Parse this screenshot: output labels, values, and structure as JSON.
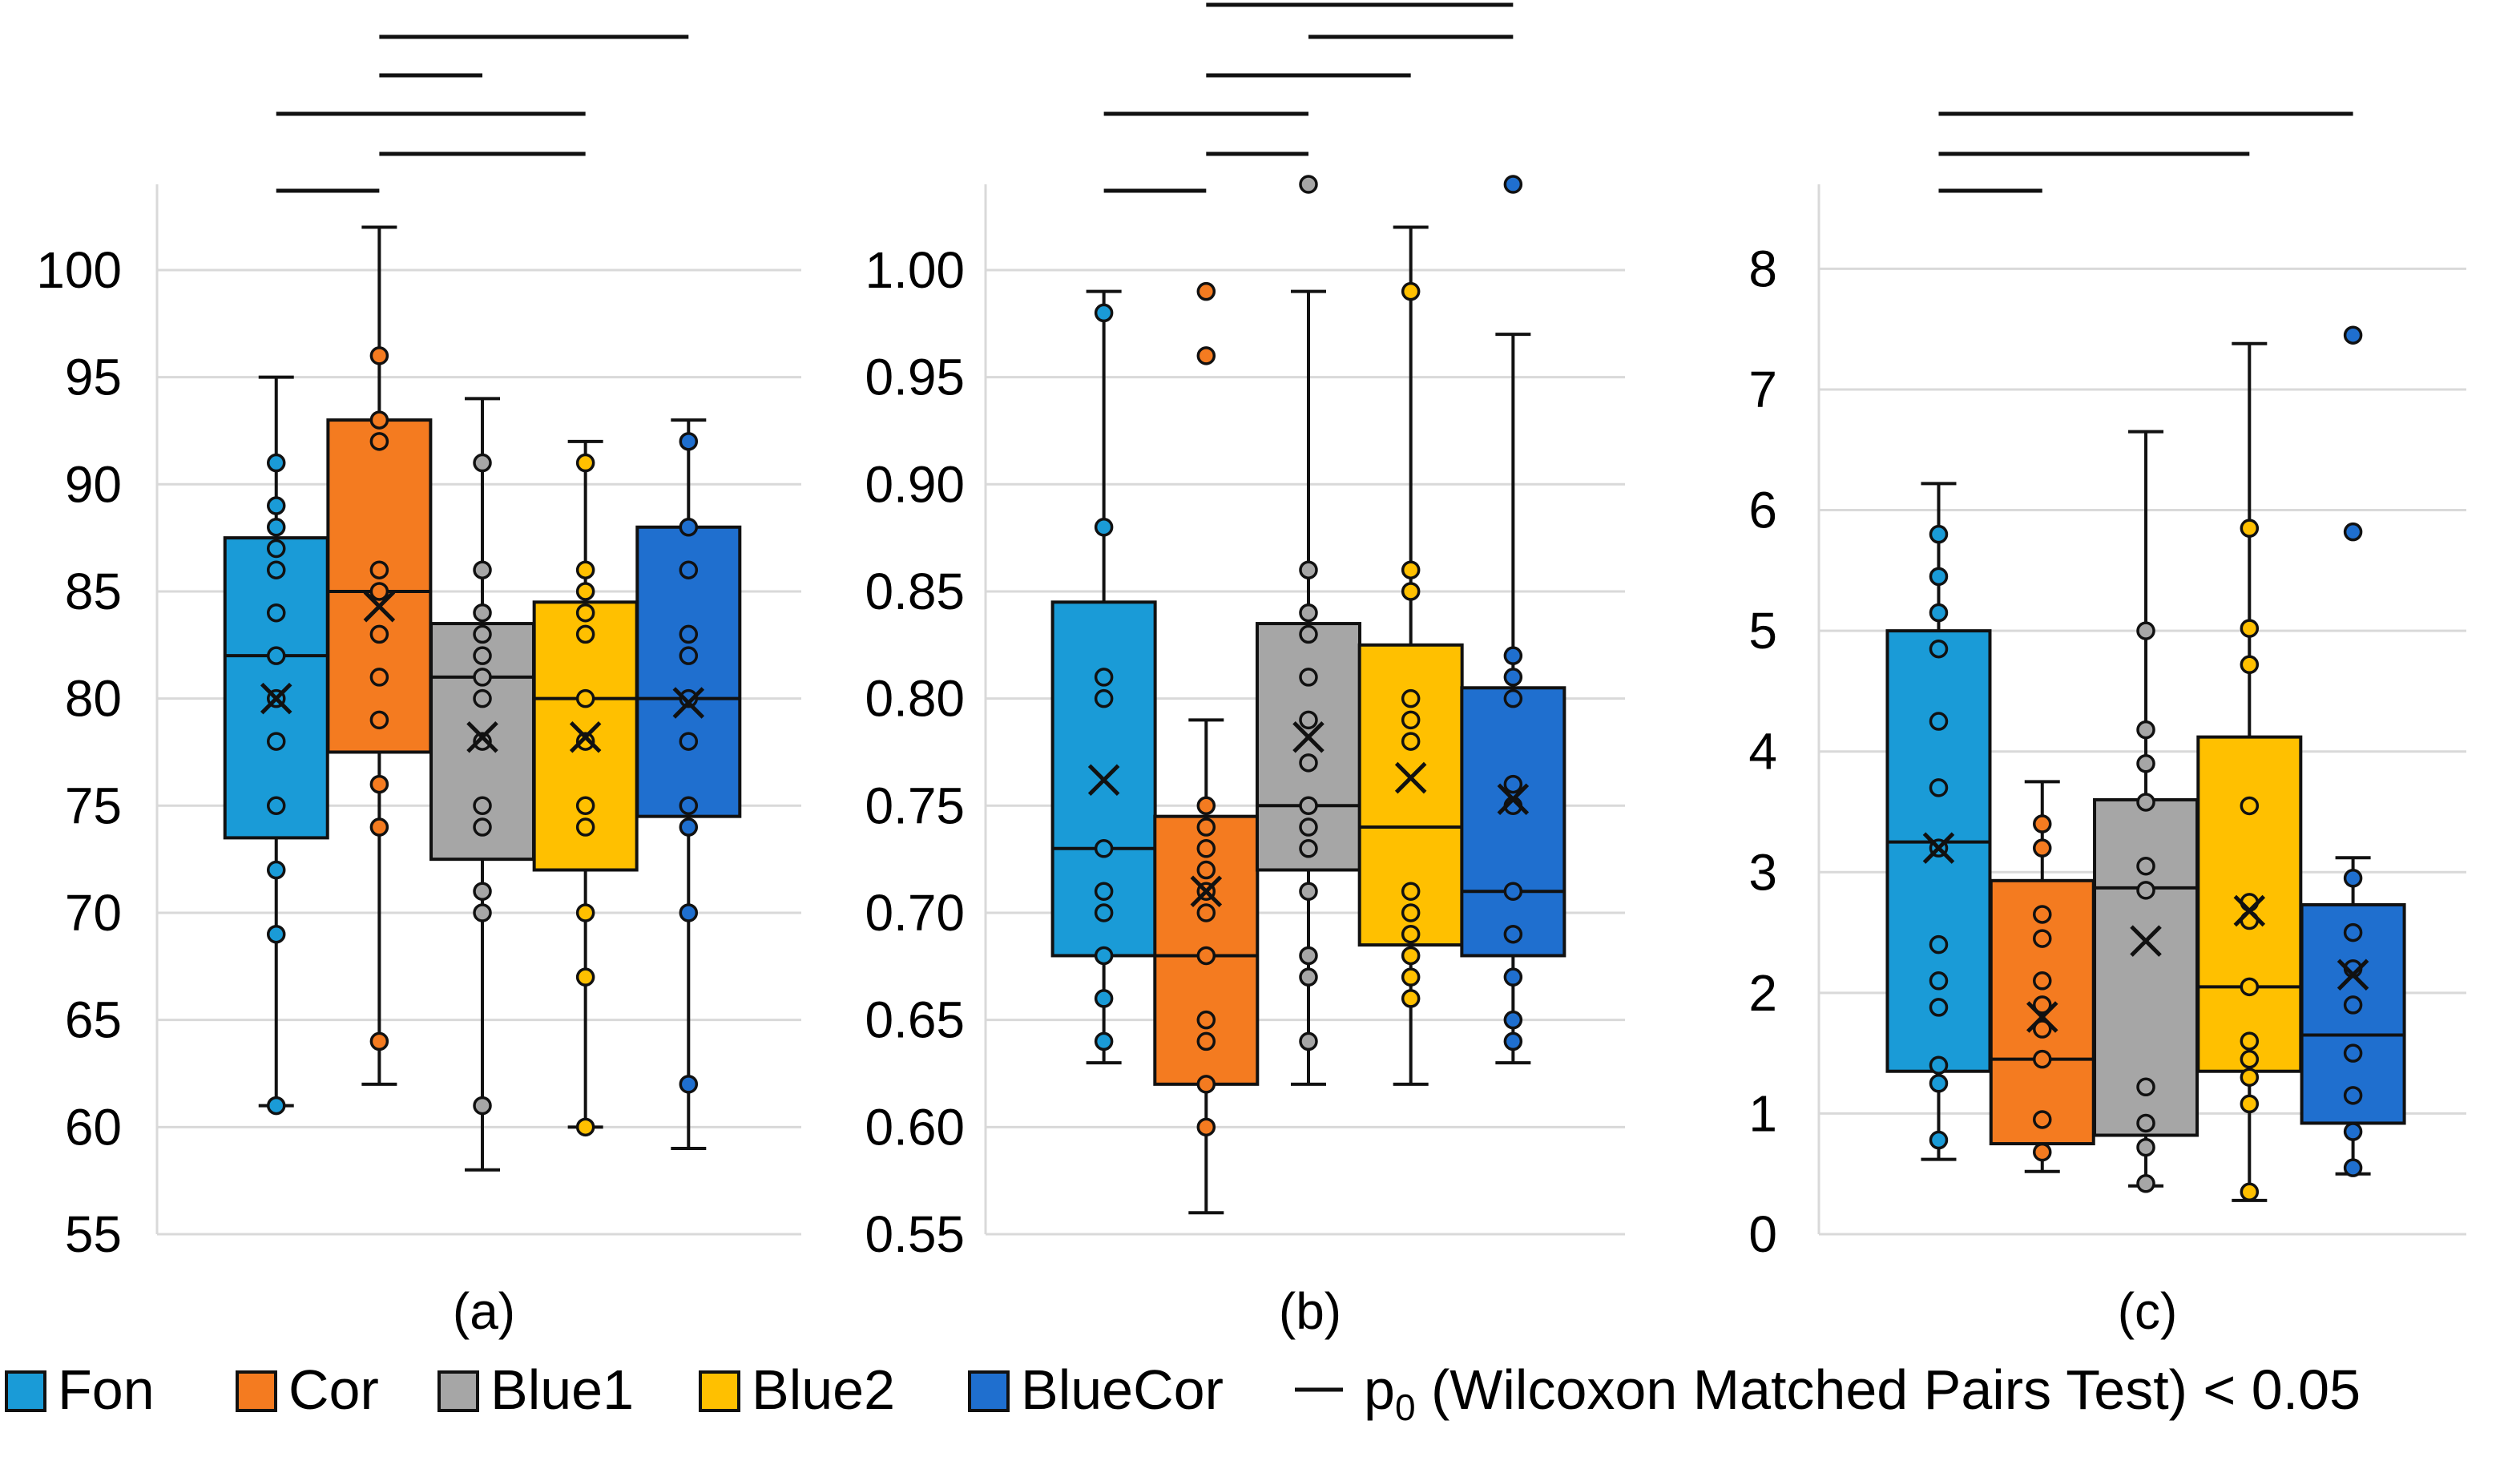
{
  "legend": {
    "items": [
      {
        "label": "Fon",
        "color": "#1a9bd7"
      },
      {
        "label": "Cor",
        "color": "#f47b20"
      },
      {
        "label": "Blue1",
        "color": "#a6a6a6"
      },
      {
        "label": "Blue2",
        "color": "#ffc000"
      },
      {
        "label": "BlueCor",
        "color": "#1f6fcf"
      }
    ],
    "sig_prefix": "p",
    "sig_sub": "0",
    "sig_text": " (Wilcoxon Matched Pairs Test) < 0.05"
  },
  "chart_data": [
    {
      "type": "box",
      "panel_label": "(a)",
      "ylim": [
        55,
        104
      ],
      "ticks": [
        55,
        60,
        65,
        70,
        75,
        80,
        85,
        90,
        95,
        100
      ],
      "tick_labels": [
        "55",
        "60",
        "65",
        "70",
        "75",
        "80",
        "85",
        "90",
        "95",
        "100"
      ],
      "grid": true,
      "series": [
        {
          "name": "Fon",
          "q1": 73.5,
          "median": 82,
          "q3": 87.5,
          "whisker_low": 61,
          "whisker_high": 95,
          "mean": 80,
          "points": [
            61,
            69,
            72,
            75,
            78,
            80,
            82,
            84,
            86,
            87,
            88,
            89,
            91
          ]
        },
        {
          "name": "Cor",
          "q1": 77.5,
          "median": 85,
          "q3": 93,
          "whisker_low": 62,
          "whisker_high": 102,
          "mean": 84.3,
          "points": [
            64,
            74,
            76,
            79,
            81,
            83,
            85,
            86,
            92,
            93,
            96
          ]
        },
        {
          "name": "Blue1",
          "q1": 72.5,
          "median": 81,
          "q3": 83.5,
          "whisker_low": 58,
          "whisker_high": 94,
          "mean": 78.2,
          "points": [
            61,
            70,
            71,
            74,
            75,
            78,
            80,
            81,
            82,
            83,
            84,
            86,
            91
          ]
        },
        {
          "name": "Blue2",
          "q1": 72,
          "median": 80,
          "q3": 84.5,
          "whisker_low": 60,
          "whisker_high": 92,
          "mean": 78.2,
          "points": [
            60,
            67,
            70,
            74,
            75,
            78,
            80,
            83,
            84,
            85,
            86,
            91
          ]
        },
        {
          "name": "BlueCor",
          "q1": 74.5,
          "median": 80,
          "q3": 88,
          "whisker_low": 59,
          "whisker_high": 93,
          "mean": 79.8,
          "points": [
            62,
            70,
            74,
            75,
            78,
            80,
            82,
            83,
            86,
            88,
            92
          ]
        }
      ],
      "sig_pairs": [
        {
          "from": "Fon",
          "to": "Cor"
        },
        {
          "from": "Cor",
          "to": "Blue2"
        },
        {
          "from": "Fon",
          "to": "Blue2"
        },
        {
          "from": "Cor",
          "to": "Blue1"
        },
        {
          "from": "Cor",
          "to": "BlueCor"
        }
      ]
    },
    {
      "type": "box",
      "panel_label": "(b)",
      "ylim": [
        0.55,
        1.04
      ],
      "ticks": [
        0.55,
        0.6,
        0.65,
        0.7,
        0.75,
        0.8,
        0.85,
        0.9,
        0.95,
        1.0
      ],
      "tick_labels": [
        "0.55",
        "0.60",
        "0.65",
        "0.70",
        "0.75",
        "0.80",
        "0.85",
        "0.90",
        "0.95",
        "1.00"
      ],
      "grid": true,
      "series": [
        {
          "name": "Fon",
          "q1": 0.68,
          "median": 0.73,
          "q3": 0.845,
          "whisker_low": 0.63,
          "whisker_high": 0.99,
          "mean": 0.762,
          "points": [
            0.64,
            0.66,
            0.68,
            0.7,
            0.71,
            0.73,
            0.8,
            0.81,
            0.88,
            0.98
          ]
        },
        {
          "name": "Cor",
          "q1": 0.62,
          "median": 0.68,
          "q3": 0.745,
          "whisker_low": 0.56,
          "whisker_high": 0.79,
          "mean": 0.71,
          "points": [
            0.6,
            0.62,
            0.64,
            0.65,
            0.68,
            0.7,
            0.71,
            0.72,
            0.73,
            0.74,
            0.75,
            0.96,
            0.99
          ]
        },
        {
          "name": "Blue1",
          "q1": 0.72,
          "median": 0.75,
          "q3": 0.835,
          "whisker_low": 0.62,
          "whisker_high": 0.99,
          "mean": 0.782,
          "points": [
            0.64,
            0.67,
            0.68,
            0.71,
            0.73,
            0.74,
            0.75,
            0.77,
            0.79,
            0.81,
            0.83,
            0.84,
            0.86,
            1.04
          ]
        },
        {
          "name": "Blue2",
          "q1": 0.685,
          "median": 0.74,
          "q3": 0.825,
          "whisker_low": 0.62,
          "whisker_high": 1.02,
          "mean": 0.763,
          "points": [
            0.66,
            0.67,
            0.68,
            0.69,
            0.7,
            0.71,
            0.78,
            0.79,
            0.8,
            0.85,
            0.86,
            0.99
          ]
        },
        {
          "name": "BlueCor",
          "q1": 0.68,
          "median": 0.71,
          "q3": 0.805,
          "whisker_low": 0.63,
          "whisker_high": 0.97,
          "mean": 0.753,
          "points": [
            0.64,
            0.65,
            0.67,
            0.69,
            0.71,
            0.75,
            0.76,
            0.8,
            0.81,
            0.82,
            1.04
          ]
        }
      ],
      "sig_pairs": [
        {
          "from": "Fon",
          "to": "Cor"
        },
        {
          "from": "Cor",
          "to": "Blue1"
        },
        {
          "from": "Fon",
          "to": "Blue1"
        },
        {
          "from": "Cor",
          "to": "Blue2"
        },
        {
          "from": "Blue1",
          "to": "BlueCor"
        },
        {
          "from": "Cor",
          "to": "BlueCor"
        }
      ]
    },
    {
      "type": "box",
      "panel_label": "(c)",
      "ylim": [
        0,
        8.7
      ],
      "ticks": [
        0,
        1,
        2,
        3,
        4,
        5,
        6,
        7,
        8
      ],
      "tick_labels": [
        "0",
        "1",
        "2",
        "3",
        "4",
        "5",
        "6",
        "7",
        "8"
      ],
      "grid": true,
      "series": [
        {
          "name": "Fon",
          "q1": 1.35,
          "median": 3.25,
          "q3": 5.0,
          "whisker_low": 0.62,
          "whisker_high": 6.22,
          "mean": 3.2,
          "points": [
            0.78,
            1.25,
            1.4,
            1.88,
            2.1,
            2.4,
            3.2,
            3.7,
            4.25,
            4.85,
            5.15,
            5.45,
            5.8
          ]
        },
        {
          "name": "Cor",
          "q1": 0.75,
          "median": 1.45,
          "q3": 2.93,
          "whisker_low": 0.52,
          "whisker_high": 3.75,
          "mean": 1.8,
          "points": [
            0.68,
            0.95,
            1.45,
            1.7,
            1.9,
            2.1,
            2.45,
            2.65,
            3.2,
            3.4
          ]
        },
        {
          "name": "Blue1",
          "q1": 0.82,
          "median": 2.87,
          "q3": 3.6,
          "whisker_low": 0.4,
          "whisker_high": 6.65,
          "mean": 2.43,
          "points": [
            0.42,
            0.72,
            0.92,
            1.22,
            2.85,
            3.05,
            3.58,
            3.9,
            4.18,
            5.0
          ]
        },
        {
          "name": "Blue2",
          "q1": 1.35,
          "median": 2.05,
          "q3": 4.12,
          "whisker_low": 0.28,
          "whisker_high": 7.38,
          "mean": 2.68,
          "points": [
            0.35,
            1.08,
            1.3,
            1.45,
            1.6,
            2.05,
            2.6,
            2.75,
            3.55,
            4.72,
            5.02,
            5.85
          ]
        },
        {
          "name": "BlueCor",
          "q1": 0.92,
          "median": 1.65,
          "q3": 2.73,
          "whisker_low": 0.5,
          "whisker_high": 3.12,
          "mean": 2.15,
          "points": [
            0.55,
            0.85,
            1.15,
            1.5,
            1.9,
            2.2,
            2.5,
            2.95,
            5.82,
            7.45
          ]
        }
      ],
      "sig_pairs": [
        {
          "from": "Fon",
          "to": "Cor"
        },
        {
          "from": "Fon",
          "to": "Blue2"
        },
        {
          "from": "Fon",
          "to": "BlueCor"
        }
      ]
    }
  ]
}
